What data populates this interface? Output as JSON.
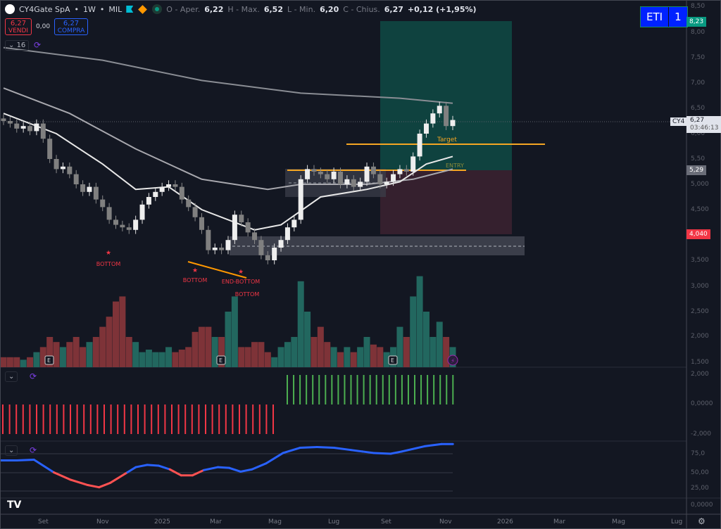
{
  "header": {
    "symbol": "CY4Gate SpA",
    "interval": "1W",
    "exchange": "MIL",
    "o_label": "O - Aper.",
    "o": "6,22",
    "h_label": "H - Max.",
    "h": "6,52",
    "l_label": "L - Min.",
    "l": "6,20",
    "c_label": "C - Chius.",
    "c": "6,27",
    "change": "+0,12 (+1,95%)"
  },
  "trade": {
    "sell_price": "6,27",
    "sell_label": "VENDI",
    "spread": "0,00",
    "buy_price": "6,27",
    "buy_label": "COMPRA"
  },
  "indicator_count": "16",
  "eti": {
    "label": "ETI",
    "value": "1"
  },
  "price_axis": [
    "8,50",
    "8,00",
    "7,50",
    "7,00",
    "6,50",
    "6,00",
    "5,50",
    "5,000",
    "4,500",
    "3,500"
  ],
  "volume_axis": [
    "3,000",
    "2,500",
    "2,000",
    "1,500"
  ],
  "hist_axis": [
    "2,000",
    "0,0000",
    "-2,000"
  ],
  "osc_axis": [
    "75,0",
    "50,00",
    "25,00",
    "0,0000"
  ],
  "tags": {
    "target": "8,23",
    "last": "6,27",
    "countdown": "03:46:13",
    "symbol_short": "CY4",
    "entry": "5,29",
    "stop": "4,040"
  },
  "annotations": {
    "target": "Target",
    "entry": "ENTRY",
    "bottom1": "BOTTOM",
    "bottom2": "BOTTOM",
    "end_bottom": "END-BOTTOM",
    "bottom3": "BOTTOM",
    "earnings": "E"
  },
  "time_axis": [
    "Set",
    "Nov",
    "2025",
    "Mar",
    "Mag",
    "Lug",
    "Set",
    "Nov",
    "2026",
    "Mar",
    "Mag",
    "Lug"
  ],
  "chart_data": {
    "type": "candlestick",
    "closes": [
      6.25,
      6.2,
      6.1,
      6.15,
      6.05,
      6.2,
      5.9,
      5.5,
      5.3,
      5.35,
      5.2,
      5.0,
      4.85,
      4.95,
      4.7,
      4.55,
      4.3,
      4.2,
      4.15,
      4.1,
      4.3,
      4.6,
      4.75,
      4.85,
      4.95,
      5.0,
      4.95,
      4.7,
      4.55,
      4.35,
      4.1,
      3.7,
      3.75,
      3.7,
      3.9,
      4.4,
      4.25,
      4.05,
      3.9,
      3.6,
      3.5,
      3.75,
      3.9,
      4.15,
      4.3,
      5.1,
      5.3,
      5.25,
      5.2,
      5.1,
      5.25,
      5.0,
      5.1,
      4.95,
      5.05,
      5.35,
      5.2,
      5.0,
      5.05,
      5.2,
      5.3,
      5.25,
      5.55,
      6.0,
      6.2,
      6.4,
      6.55,
      6.15,
      6.27
    ],
    "volume": [
      1.6,
      1.6,
      1.6,
      1.55,
      1.6,
      1.7,
      1.8,
      2.0,
      1.9,
      1.8,
      1.9,
      2.0,
      1.8,
      1.9,
      2.0,
      2.2,
      2.4,
      2.7,
      2.8,
      2.0,
      1.9,
      1.7,
      1.75,
      1.7,
      1.7,
      1.8,
      1.7,
      1.75,
      1.8,
      2.1,
      2.2,
      2.2,
      2.0,
      2.0,
      2.5,
      2.8,
      1.8,
      1.8,
      1.9,
      1.9,
      1.7,
      1.6,
      1.8,
      1.9,
      2.0,
      3.1,
      2.5,
      2.0,
      2.2,
      1.9,
      1.8,
      1.7,
      1.8,
      1.7,
      1.8,
      2.0,
      1.85,
      1.8,
      1.7,
      1.8,
      2.2,
      2.0,
      2.8,
      3.2,
      2.5,
      2.0,
      2.3,
      2.0,
      1.8
    ],
    "ma_long": [
      [
        0,
        7.7
      ],
      [
        15,
        7.45
      ],
      [
        30,
        7.05
      ],
      [
        45,
        6.8
      ],
      [
        60,
        6.7
      ],
      [
        68,
        6.6
      ]
    ],
    "ma_mid": [
      [
        0,
        6.9
      ],
      [
        10,
        6.4
      ],
      [
        20,
        5.7
      ],
      [
        30,
        5.1
      ],
      [
        40,
        4.9
      ],
      [
        45,
        5.0
      ],
      [
        55,
        5.0
      ],
      [
        62,
        5.1
      ],
      [
        68,
        5.3
      ]
    ],
    "ma_short": [
      [
        0,
        6.4
      ],
      [
        8,
        6.0
      ],
      [
        15,
        5.4
      ],
      [
        20,
        4.9
      ],
      [
        25,
        4.95
      ],
      [
        30,
        4.5
      ],
      [
        38,
        4.1
      ],
      [
        42,
        4.2
      ],
      [
        48,
        4.75
      ],
      [
        55,
        4.9
      ],
      [
        60,
        5.05
      ],
      [
        64,
        5.4
      ],
      [
        68,
        5.55
      ]
    ],
    "histogram": {
      "neg_count": 41,
      "pos_count": 27,
      "neg": -1.5,
      "pos": 1.5
    },
    "oscillator": [
      [
        0,
        66
      ],
      [
        6,
        66
      ],
      [
        12,
        67
      ],
      [
        19,
        50
      ],
      [
        25,
        40
      ],
      [
        31,
        33
      ],
      [
        35,
        30
      ],
      [
        39,
        36
      ],
      [
        45,
        50
      ],
      [
        48,
        57
      ],
      [
        52,
        60
      ],
      [
        56,
        59
      ],
      [
        60,
        54
      ],
      [
        64,
        46
      ],
      [
        68,
        46
      ],
      [
        72,
        53
      ],
      [
        77,
        57
      ],
      [
        81,
        56
      ],
      [
        85,
        51
      ],
      [
        89,
        54
      ],
      [
        94,
        62
      ],
      [
        100,
        76
      ],
      [
        106,
        83
      ],
      [
        112,
        84
      ],
      [
        118,
        83
      ],
      [
        124,
        80
      ],
      [
        128,
        78
      ],
      [
        132,
        76
      ],
      [
        138,
        75
      ],
      [
        142,
        78
      ],
      [
        150,
        85
      ],
      [
        156,
        88
      ],
      [
        160,
        88
      ]
    ],
    "osc_red_ranges": [
      [
        19,
        47
      ],
      [
        60,
        72
      ]
    ]
  }
}
